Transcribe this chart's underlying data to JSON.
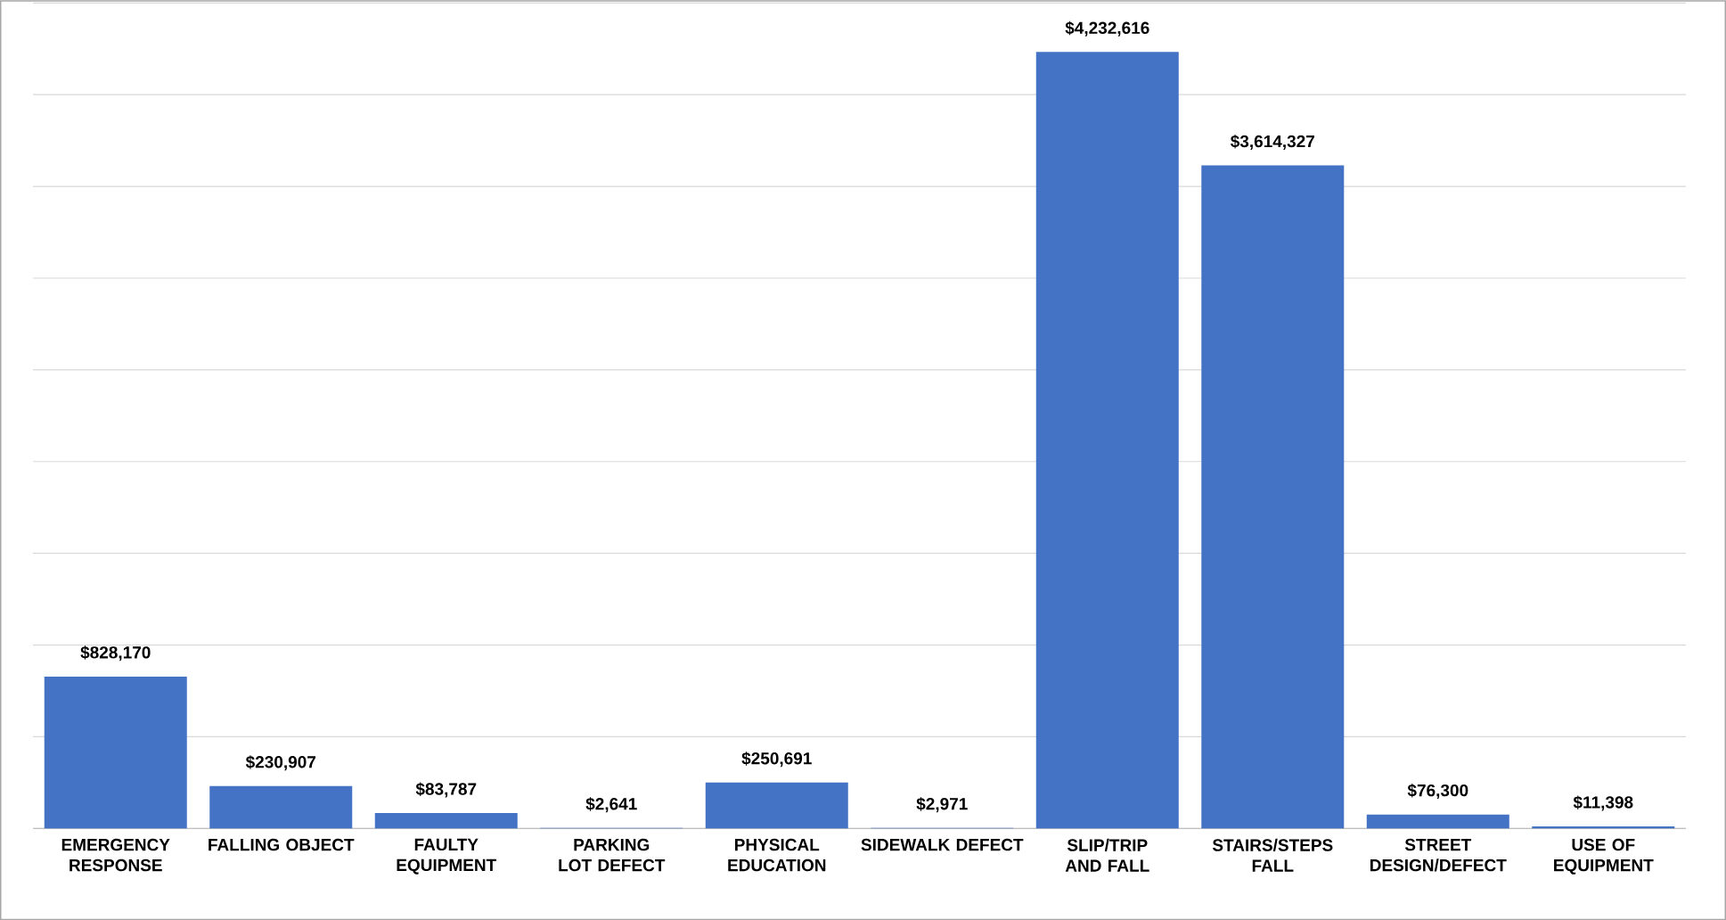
{
  "chart_data": {
    "type": "bar",
    "categories": [
      "EMERGENCY RESPONSE",
      "FALLING OBJECT",
      "FAULTY EQUIPMENT",
      "PARKING LOT DEFECT",
      "PHYSICAL EDUCATION",
      "SIDEWALK DEFECT",
      "SLIP/TRIP AND FALL",
      "STAIRS/STEPS FALL",
      "STREET DESIGN/DEFECT",
      "USE OF EQUIPMENT"
    ],
    "values": [
      828170,
      230907,
      83787,
      2641,
      250691,
      2971,
      4232616,
      3614327,
      76300,
      11398
    ],
    "value_labels": [
      "$828,170",
      "$230,907",
      "$83,787",
      "$2,641",
      "$250,691",
      "$2,971",
      "$4,232,616",
      "$3,614,327",
      "$76,300",
      "$11,398"
    ],
    "color": "#4472c4",
    "ylim": [
      0,
      4500000
    ],
    "yticks": [
      {
        "value": 0,
        "label": null
      },
      {
        "value": 500000,
        "label": null
      },
      {
        "value": 1000000,
        "label": null
      },
      {
        "value": 1500000,
        "label": null
      },
      {
        "value": 2000000,
        "label": null
      },
      {
        "value": 2500000,
        "label": null
      },
      {
        "value": 3000000,
        "label": null
      },
      {
        "value": 3500000,
        "label": null
      },
      {
        "value": 4000000,
        "label": null
      },
      {
        "value": 4500000,
        "label": null
      }
    ],
    "grid": "y",
    "tick_labels": "x"
  }
}
